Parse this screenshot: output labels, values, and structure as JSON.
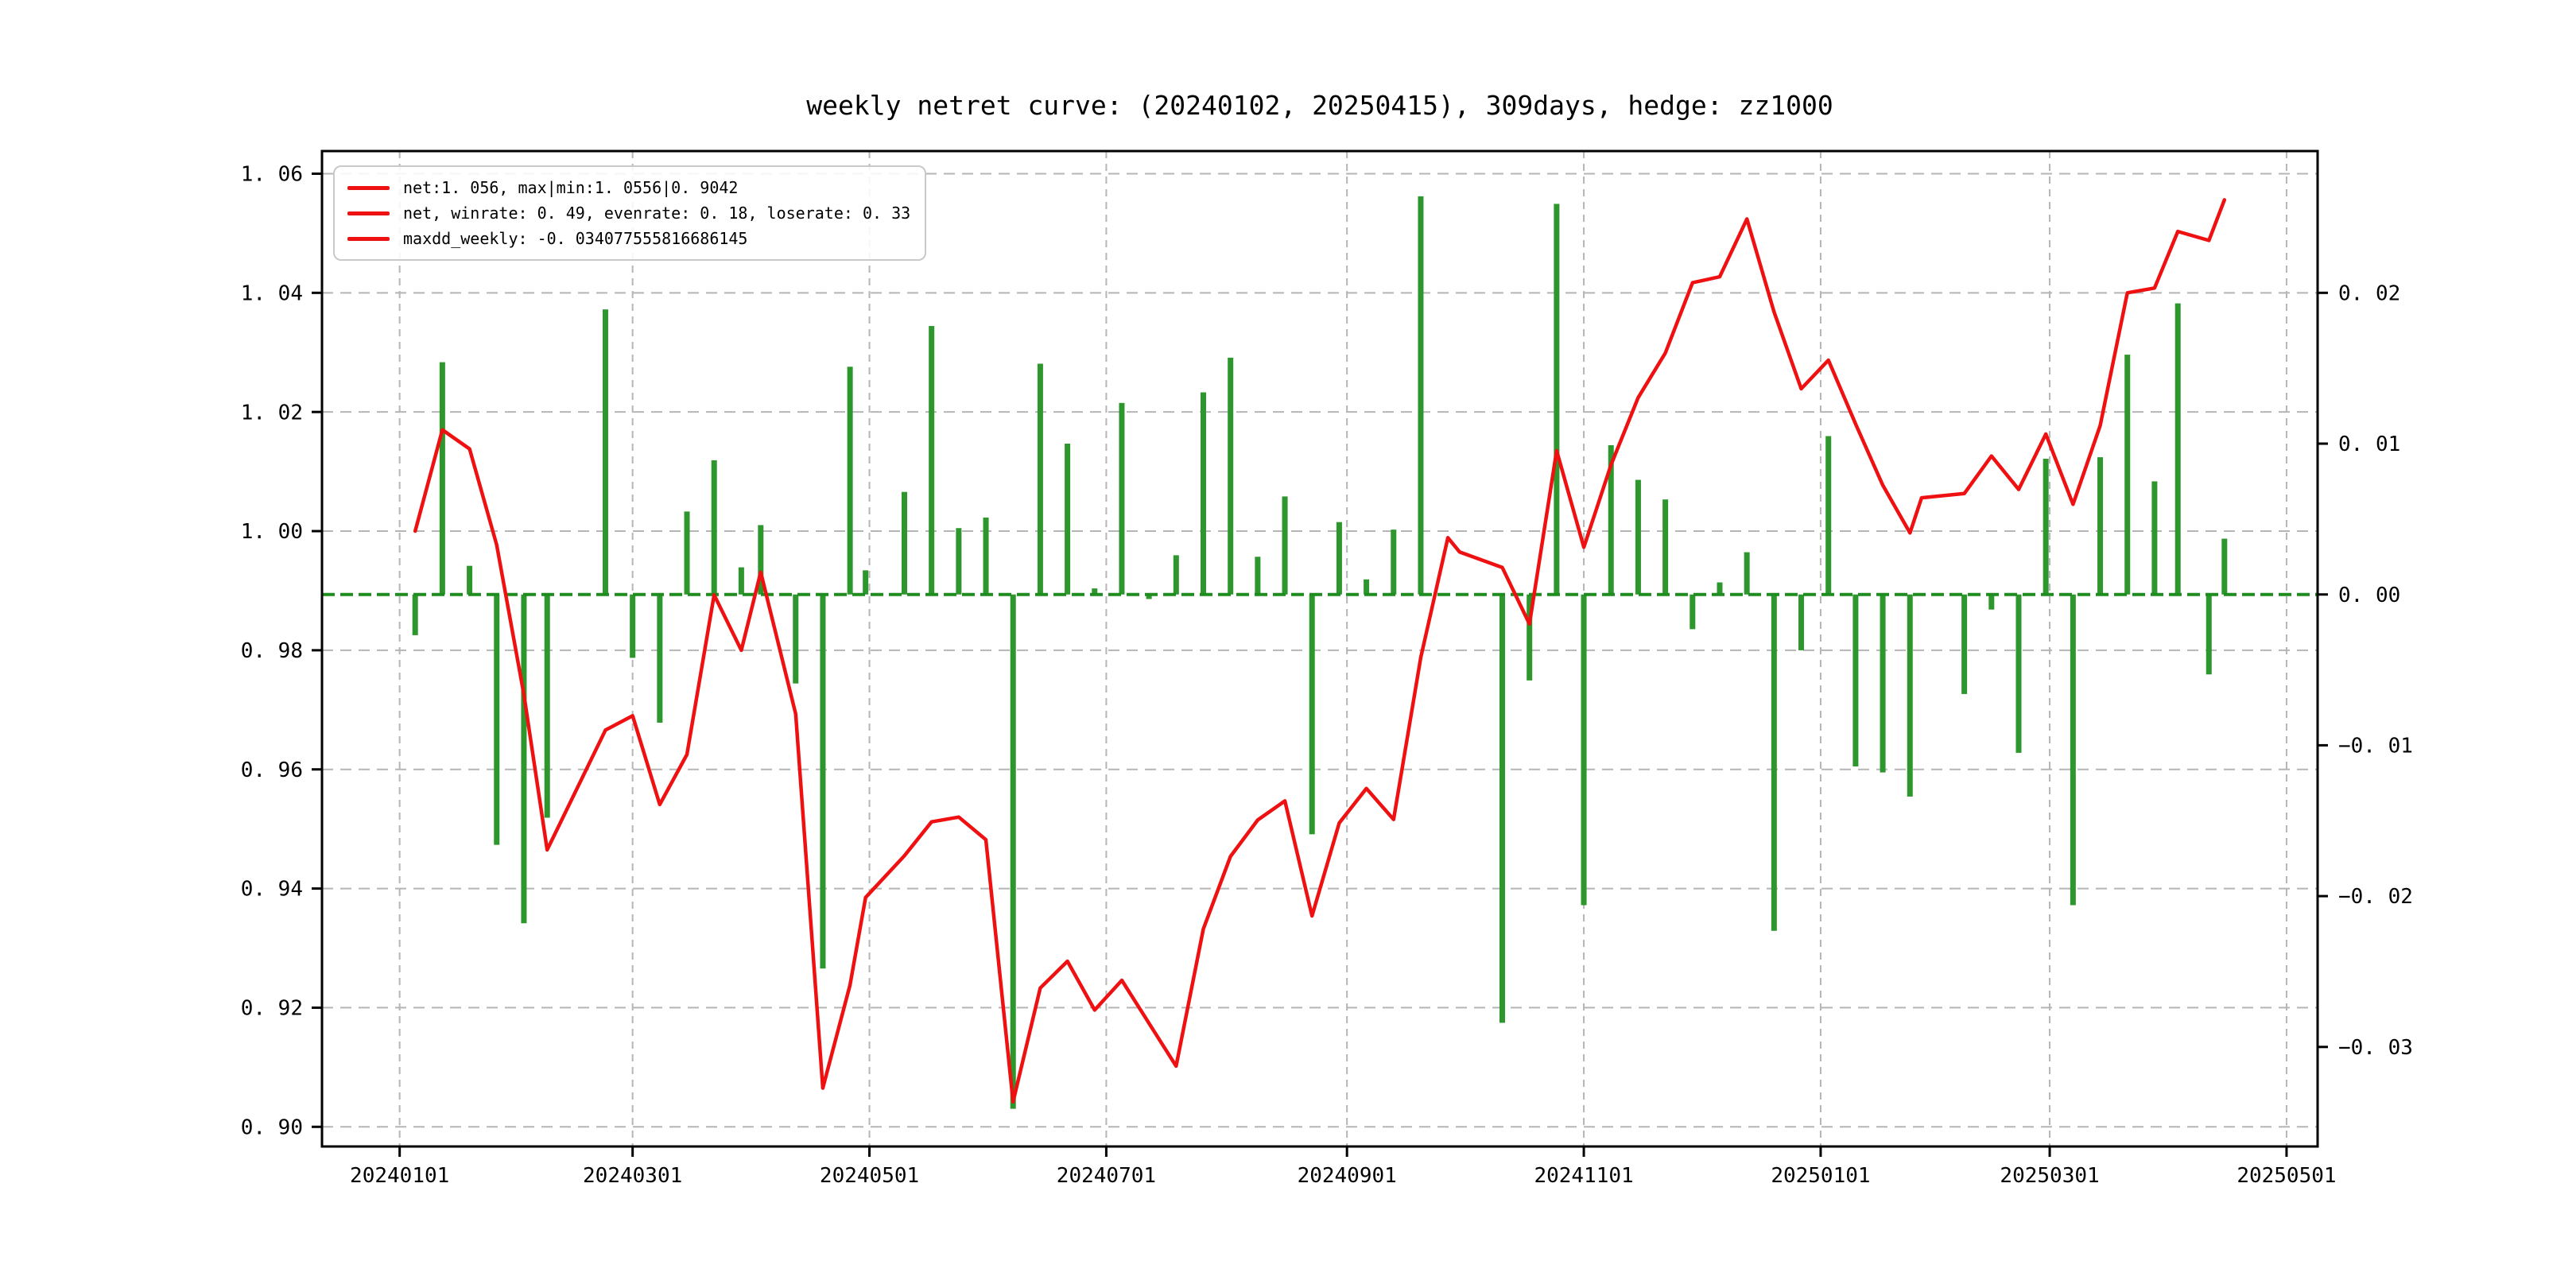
{
  "chart_data": {
    "type": "line+bar",
    "title": "weekly netret curve: (20240102, 20250415), 309days, hedge: zz1000",
    "legend": [
      "net:1. 056, max|min:1. 0556|0. 9042",
      "net, winrate: 0. 49, evenrate: 0. 18, loserate: 0. 33",
      "maxdd_weekly: -0. 034077555816686145"
    ],
    "colors": {
      "net_line": "#ef1111",
      "bars": "#2d962d",
      "zero_line": "#1f8c1f",
      "grid": "#b5b5b5",
      "spine": "#000000",
      "legend_border": "#c9c9c9"
    },
    "x_axis": {
      "xlim": [
        "2023-12-12",
        "2025-05-09"
      ],
      "ticks": [
        {
          "label": "20240101",
          "date": "2024-01-01"
        },
        {
          "label": "20240301",
          "date": "2024-03-01"
        },
        {
          "label": "20240501",
          "date": "2024-05-01"
        },
        {
          "label": "20240701",
          "date": "2024-07-01"
        },
        {
          "label": "20240901",
          "date": "2024-09-01"
        },
        {
          "label": "20241101",
          "date": "2024-11-01"
        },
        {
          "label": "20250101",
          "date": "2025-01-01"
        },
        {
          "label": "20250301",
          "date": "2025-03-01"
        },
        {
          "label": "20250501",
          "date": "2025-05-01"
        }
      ]
    },
    "left_axis": {
      "ylim": [
        0.8967,
        1.0638
      ],
      "ticks": [
        {
          "label": "1. 06",
          "value": 1.06
        },
        {
          "label": "1. 04",
          "value": 1.04
        },
        {
          "label": "1. 02",
          "value": 1.02
        },
        {
          "label": "1. 00",
          "value": 1.0
        },
        {
          "label": "0. 98",
          "value": 0.98
        },
        {
          "label": "0. 96",
          "value": 0.96
        },
        {
          "label": "0. 94",
          "value": 0.94
        },
        {
          "label": "0. 92",
          "value": 0.92
        },
        {
          "label": "0. 90",
          "value": 0.9
        }
      ]
    },
    "right_axis": {
      "ylim": [
        -0.0366,
        0.0294
      ],
      "ticks": [
        {
          "label": "0. 02",
          "value": 0.02
        },
        {
          "label": "0. 01",
          "value": 0.01
        },
        {
          "label": "0. 00",
          "value": 0.0
        },
        {
          "label": "−0. 01",
          "value": -0.01
        },
        {
          "label": "−0. 02",
          "value": -0.02
        },
        {
          "label": "−0. 03",
          "value": -0.03
        }
      ]
    },
    "zero_line": {
      "axis": "right",
      "value": 0.0
    },
    "dates": [
      "2024-01-05",
      "2024-01-12",
      "2024-01-19",
      "2024-01-26",
      "2024-02-02",
      "2024-02-08",
      "2024-02-23",
      "2024-03-01",
      "2024-03-08",
      "2024-03-15",
      "2024-03-22",
      "2024-03-29",
      "2024-04-03",
      "2024-04-12",
      "2024-04-19",
      "2024-04-26",
      "2024-04-30",
      "2024-05-10",
      "2024-05-17",
      "2024-05-24",
      "2024-05-31",
      "2024-06-07",
      "2024-06-14",
      "2024-06-21",
      "2024-06-28",
      "2024-07-05",
      "2024-07-12",
      "2024-07-19",
      "2024-07-26",
      "2024-08-02",
      "2024-08-09",
      "2024-08-16",
      "2024-08-23",
      "2024-08-30",
      "2024-09-06",
      "2024-09-13",
      "2024-09-20",
      "2024-09-27",
      "2024-09-30",
      "2024-10-11",
      "2024-10-18",
      "2024-10-25",
      "2024-11-01",
      "2024-11-08",
      "2024-11-15",
      "2024-11-22",
      "2024-11-29",
      "2024-12-06",
      "2024-12-13",
      "2024-12-20",
      "2024-12-27",
      "2025-01-03",
      "2025-01-10",
      "2025-01-17",
      "2025-01-24",
      "2025-01-27",
      "2025-02-07",
      "2025-02-14",
      "2025-02-21",
      "2025-02-28",
      "2025-03-07",
      "2025-03-14",
      "2025-03-21",
      "2025-03-28",
      "2025-04-03",
      "2025-04-11",
      "2025-04-15"
    ],
    "series": [
      {
        "name": "net",
        "type": "line",
        "axis": "left",
        "values": [
          1.0,
          1.017,
          1.0138,
          0.9977,
          0.9726,
          0.9465,
          0.9666,
          0.969,
          0.9541,
          0.9625,
          0.9893,
          0.98,
          0.9931,
          0.9693,
          0.9065,
          0.9238,
          0.9385,
          0.9455,
          0.9512,
          0.952,
          0.9482,
          0.9042,
          0.9233,
          0.9278,
          0.9196,
          0.9246,
          0.9174,
          0.9102,
          0.9332,
          0.9454,
          0.9515,
          0.9547,
          0.9354,
          0.951,
          0.9568,
          0.9516,
          0.9788,
          0.9989,
          0.9965,
          0.9939,
          0.9844,
          1.0135,
          0.9973,
          1.0111,
          1.0224,
          1.0299,
          1.0417,
          1.0427,
          1.0524,
          1.0368,
          1.0239,
          1.0287,
          1.018,
          1.0077,
          0.9997,
          1.0056,
          1.0063,
          1.0126,
          1.007,
          1.0163,
          1.0045,
          1.0177,
          1.04,
          1.0408,
          1.0503,
          1.0488,
          1.0556
        ]
      },
      {
        "name": "weekly_return",
        "type": "bar",
        "axis": "right",
        "values": [
          -0.0027,
          0.0154,
          0.0019,
          -0.0166,
          -0.0218,
          -0.0148,
          0.0189,
          -0.0042,
          -0.0085,
          0.0055,
          0.0089,
          0.0018,
          0.0046,
          -0.0059,
          -0.0248,
          0.0151,
          0.0016,
          0.0068,
          0.0178,
          0.0044,
          0.0051,
          -0.0341,
          0.0153,
          0.01,
          0.0004,
          0.0127,
          -0.0003,
          0.0026,
          0.0134,
          0.0157,
          0.0025,
          0.0065,
          -0.0159,
          0.0048,
          0.001,
          0.0043,
          0.0264,
          0.0,
          0.0,
          -0.0284,
          -0.0057,
          0.0259,
          -0.0206,
          0.0099,
          0.0076,
          0.0063,
          -0.0023,
          0.0008,
          0.0028,
          -0.0223,
          -0.0037,
          0.0105,
          -0.0114,
          -0.0118,
          -0.0134,
          0.0,
          -0.0066,
          -0.001,
          -0.0105,
          0.009,
          -0.0206,
          0.0091,
          0.0159,
          0.0075,
          0.0193,
          -0.0053,
          0.0037
        ]
      }
    ]
  }
}
